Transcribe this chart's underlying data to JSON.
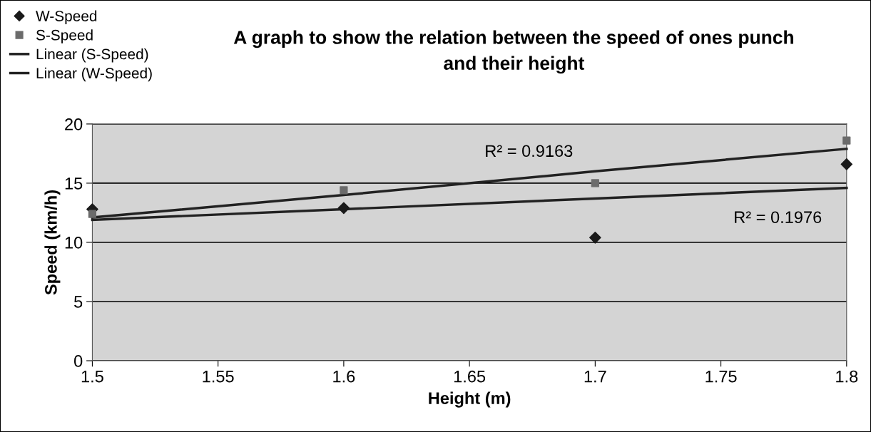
{
  "chart_data": {
    "type": "scatter",
    "title": "A graph to show the relation between the speed of ones punch\nand their height",
    "xlabel": "Height (m)",
    "ylabel": "Speed (km/h)",
    "x": [
      1.5,
      1.6,
      1.7,
      1.8
    ],
    "series": [
      {
        "name": "W-Speed",
        "color": "#1a1a1a",
        "marker": "diamond",
        "values": [
          12.8,
          12.9,
          10.4,
          16.6
        ]
      },
      {
        "name": "S-Speed",
        "color": "#6b6b6b",
        "marker": "square",
        "values": [
          12.4,
          14.4,
          15.0,
          18.6
        ]
      },
      {
        "name": "Linear (S-Speed)",
        "type": "line",
        "color": "#222222",
        "values": [
          12.1,
          14.0,
          16.0,
          17.9
        ]
      },
      {
        "name": "Linear (W-Speed)",
        "type": "line",
        "color": "#222222",
        "values": [
          11.9,
          12.8,
          13.7,
          14.6
        ]
      }
    ],
    "annotations": [
      "R² = 0.9163",
      "R² = 0.1976"
    ],
    "xlim": [
      1.5,
      1.8
    ],
    "xticks": [
      1.5,
      1.55,
      1.6,
      1.65,
      1.7,
      1.75,
      1.8
    ],
    "ylim": [
      0,
      20
    ],
    "yticks": [
      0,
      5,
      10,
      15,
      20
    ],
    "grid": "y",
    "legend": "top left"
  }
}
